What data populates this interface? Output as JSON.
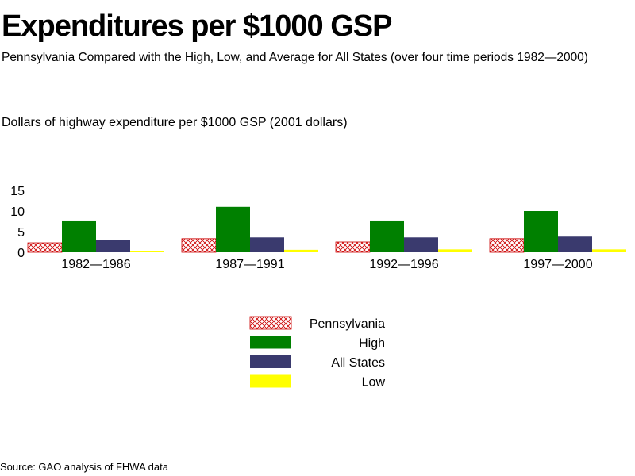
{
  "chart_data": {
    "type": "bar",
    "title": "Expenditures per $1000 GSP",
    "subtitle": "Pennsylvania Compared with the High, Low, and Average for All States (over four time periods 1982—2000)",
    "ylabel": "Dollars of highway expenditure per $1000 GSP   (2001 dollars)",
    "xlabel": "",
    "categories": [
      "1982—1986",
      "1987—1991",
      "1992—1996",
      "1997—2000"
    ],
    "yticks": [
      "0",
      "5",
      "10",
      "15"
    ],
    "ylim": [
      0,
      15
    ],
    "series": [
      {
        "name": "Pennsylvania",
        "values": [
          2.3,
          3.3,
          2.5,
          3.3
        ],
        "color": "#cc0000",
        "pattern": "crosshatch"
      },
      {
        "name": "High",
        "values": [
          7.7,
          11.0,
          7.7,
          10.0
        ],
        "color": "#008000"
      },
      {
        "name": "All States",
        "values": [
          3.0,
          3.6,
          3.6,
          3.8
        ],
        "color": "#3a3a6e"
      },
      {
        "name": "Low",
        "values": [
          0.3,
          0.6,
          0.7,
          0.7
        ],
        "color": "#ffff00"
      }
    ],
    "legend_position": "bottom-center",
    "grid": false
  },
  "source": "Source: GAO analysis of FHWA data"
}
